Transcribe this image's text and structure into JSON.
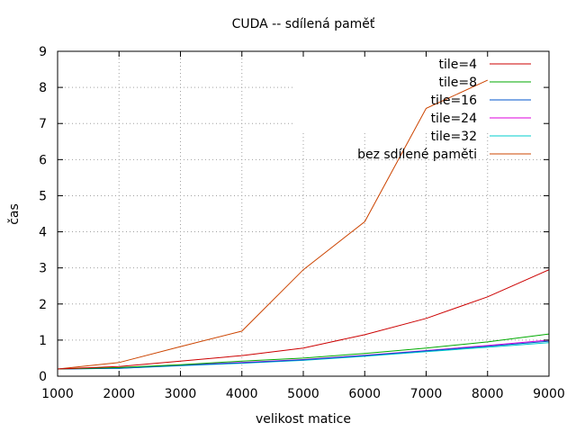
{
  "chart_data": {
    "type": "line",
    "title": "CUDA -- sdílená paměť",
    "xlabel": "velikost matice",
    "ylabel": "čas",
    "xlim": [
      1000,
      9000
    ],
    "ylim": [
      0,
      9
    ],
    "xticks": [
      1000,
      2000,
      3000,
      4000,
      5000,
      6000,
      7000,
      8000,
      9000
    ],
    "yticks": [
      0,
      1,
      2,
      3,
      4,
      5,
      6,
      7,
      8,
      9
    ],
    "grid": true,
    "legend_position": "top-right",
    "x": [
      1000,
      2000,
      3000,
      4000,
      5000,
      6000,
      7000,
      8000,
      9000
    ],
    "series": [
      {
        "name": "tile=4",
        "color": "#cc0000",
        "values": [
          0.2,
          0.27,
          0.42,
          0.57,
          0.78,
          1.15,
          1.6,
          2.2,
          2.95
        ]
      },
      {
        "name": "tile=8",
        "color": "#00aa00",
        "values": [
          0.2,
          0.24,
          0.32,
          0.42,
          0.5,
          0.63,
          0.78,
          0.95,
          1.17
        ]
      },
      {
        "name": "tile=16",
        "color": "#0055cc",
        "values": [
          0.2,
          0.22,
          0.3,
          0.37,
          0.45,
          0.57,
          0.7,
          0.83,
          0.97
        ]
      },
      {
        "name": "tile=24",
        "color": "#dd00dd",
        "values": [
          0.2,
          0.23,
          0.31,
          0.38,
          0.46,
          0.58,
          0.71,
          0.85,
          1.0
        ]
      },
      {
        "name": "tile=32",
        "color": "#00cccc",
        "values": [
          0.2,
          0.22,
          0.29,
          0.36,
          0.44,
          0.55,
          0.68,
          0.8,
          0.93
        ]
      },
      {
        "name": "bez sdílené paměti",
        "color": "#cc4400",
        "values": [
          0.2,
          0.38,
          0.82,
          1.25,
          2.95,
          4.28,
          7.42,
          8.2,
          null
        ]
      }
    ]
  }
}
